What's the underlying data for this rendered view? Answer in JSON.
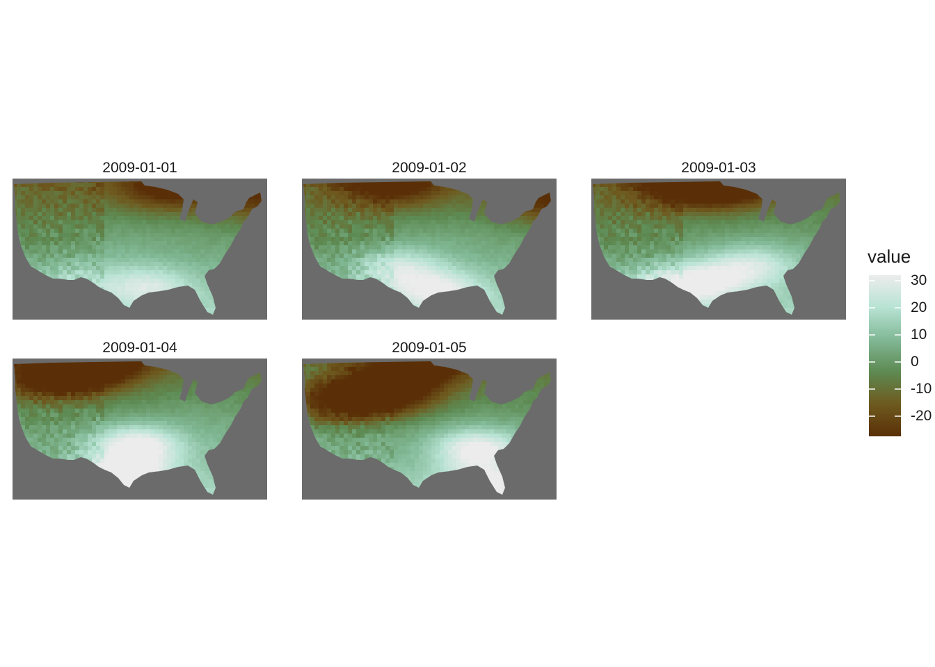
{
  "panels": [
    {
      "title": "2009-01-01",
      "cold": [
        [
          0.6,
          0.05,
          0.9
        ],
        [
          0.95,
          0.12,
          0.7
        ]
      ],
      "warm": [
        [
          0.52,
          0.75,
          0.8
        ],
        [
          0.22,
          0.7,
          0.5
        ]
      ],
      "mid": [
        0.45,
        0.45,
        1.0
      ],
      "westShift": 0.0
    },
    {
      "title": "2009-01-02",
      "cold": [
        [
          0.35,
          0.02,
          1.0
        ],
        [
          0.95,
          0.14,
          0.8
        ]
      ],
      "warm": [
        [
          0.36,
          0.62,
          0.9
        ],
        [
          0.53,
          0.78,
          1.0
        ]
      ],
      "mid": [
        0.55,
        0.45,
        1.0
      ],
      "westShift": 0.0
    },
    {
      "title": "2009-01-03",
      "cold": [
        [
          0.38,
          0.03,
          1.1
        ],
        [
          0.55,
          0.02,
          1.0
        ]
      ],
      "warm": [
        [
          0.42,
          0.72,
          1.1
        ],
        [
          0.23,
          0.75,
          0.7
        ],
        [
          0.62,
          0.6,
          0.9
        ]
      ],
      "mid": [
        0.7,
        0.5,
        0.9
      ],
      "westShift": 0.0
    },
    {
      "title": "2009-01-04",
      "cold": [
        [
          0.32,
          0.0,
          1.4
        ],
        [
          0.16,
          0.12,
          1.2
        ]
      ],
      "warm": [
        [
          0.48,
          0.6,
          1.4
        ],
        [
          0.43,
          0.82,
          1.3
        ]
      ],
      "mid": [
        0.75,
        0.4,
        1.0
      ],
      "westShift": -0.5
    },
    {
      "title": "2009-01-05",
      "cold": [
        [
          0.45,
          0.0,
          1.4
        ],
        [
          0.32,
          0.22,
          1.3
        ],
        [
          0.15,
          0.3,
          1.0
        ]
      ],
      "warm": [
        [
          0.68,
          0.62,
          1.3
        ],
        [
          0.72,
          0.88,
          1.0
        ]
      ],
      "mid": [
        0.4,
        0.7,
        0.5
      ],
      "westShift": -0.8
    }
  ],
  "legend": {
    "title": "value",
    "ticks": [
      "30",
      "20",
      "10",
      "0",
      "-10",
      "-20"
    ],
    "colors": [
      "#ececec",
      "#b8e3d4",
      "#81b895",
      "#5d8a52",
      "#6e5a1f",
      "#5a2f07"
    ],
    "background": "#6b6b6b"
  }
}
